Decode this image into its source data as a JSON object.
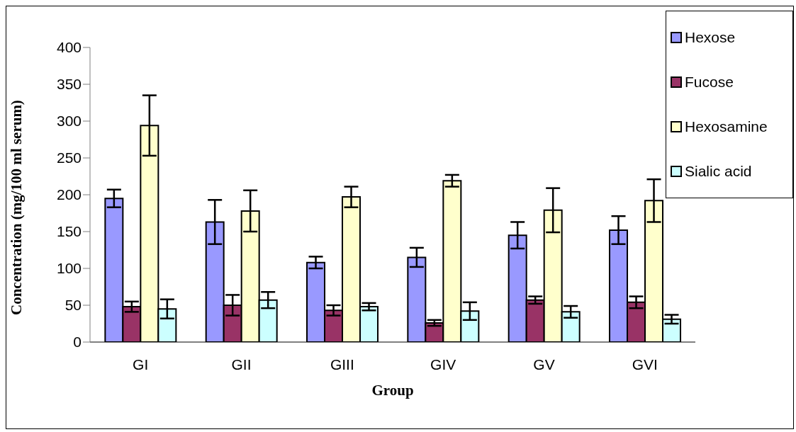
{
  "chart_data": {
    "type": "bar",
    "xlabel": "Group",
    "ylabel": "Concentration (mg/100 ml serum)",
    "categories": [
      "GI",
      "GII",
      "GIII",
      "GIV",
      "GV",
      "GVI"
    ],
    "series": [
      {
        "name": "Hexose",
        "color": "#9999ff",
        "values": [
          195,
          163,
          108,
          115,
          145,
          152
        ],
        "errors": [
          12,
          30,
          8,
          13,
          18,
          19
        ]
      },
      {
        "name": "Fucose",
        "color": "#993366",
        "values": [
          48,
          50,
          43,
          26,
          57,
          54
        ],
        "errors": [
          7,
          14,
          7,
          4,
          5,
          8
        ]
      },
      {
        "name": "Hexosamine",
        "color": "#ffffcc",
        "values": [
          294,
          178,
          197,
          219,
          179,
          192
        ],
        "errors": [
          41,
          28,
          14,
          8,
          30,
          29
        ]
      },
      {
        "name": "Sialic acid",
        "color": "#ccffff",
        "values": [
          45,
          57,
          48,
          42,
          41,
          31
        ],
        "errors": [
          13,
          11,
          5,
          12,
          8,
          6
        ]
      }
    ],
    "ylim": [
      0,
      400
    ],
    "yticks": [
      0,
      50,
      100,
      150,
      200,
      250,
      300,
      350,
      400
    ],
    "grid": false,
    "legend": "top right"
  }
}
